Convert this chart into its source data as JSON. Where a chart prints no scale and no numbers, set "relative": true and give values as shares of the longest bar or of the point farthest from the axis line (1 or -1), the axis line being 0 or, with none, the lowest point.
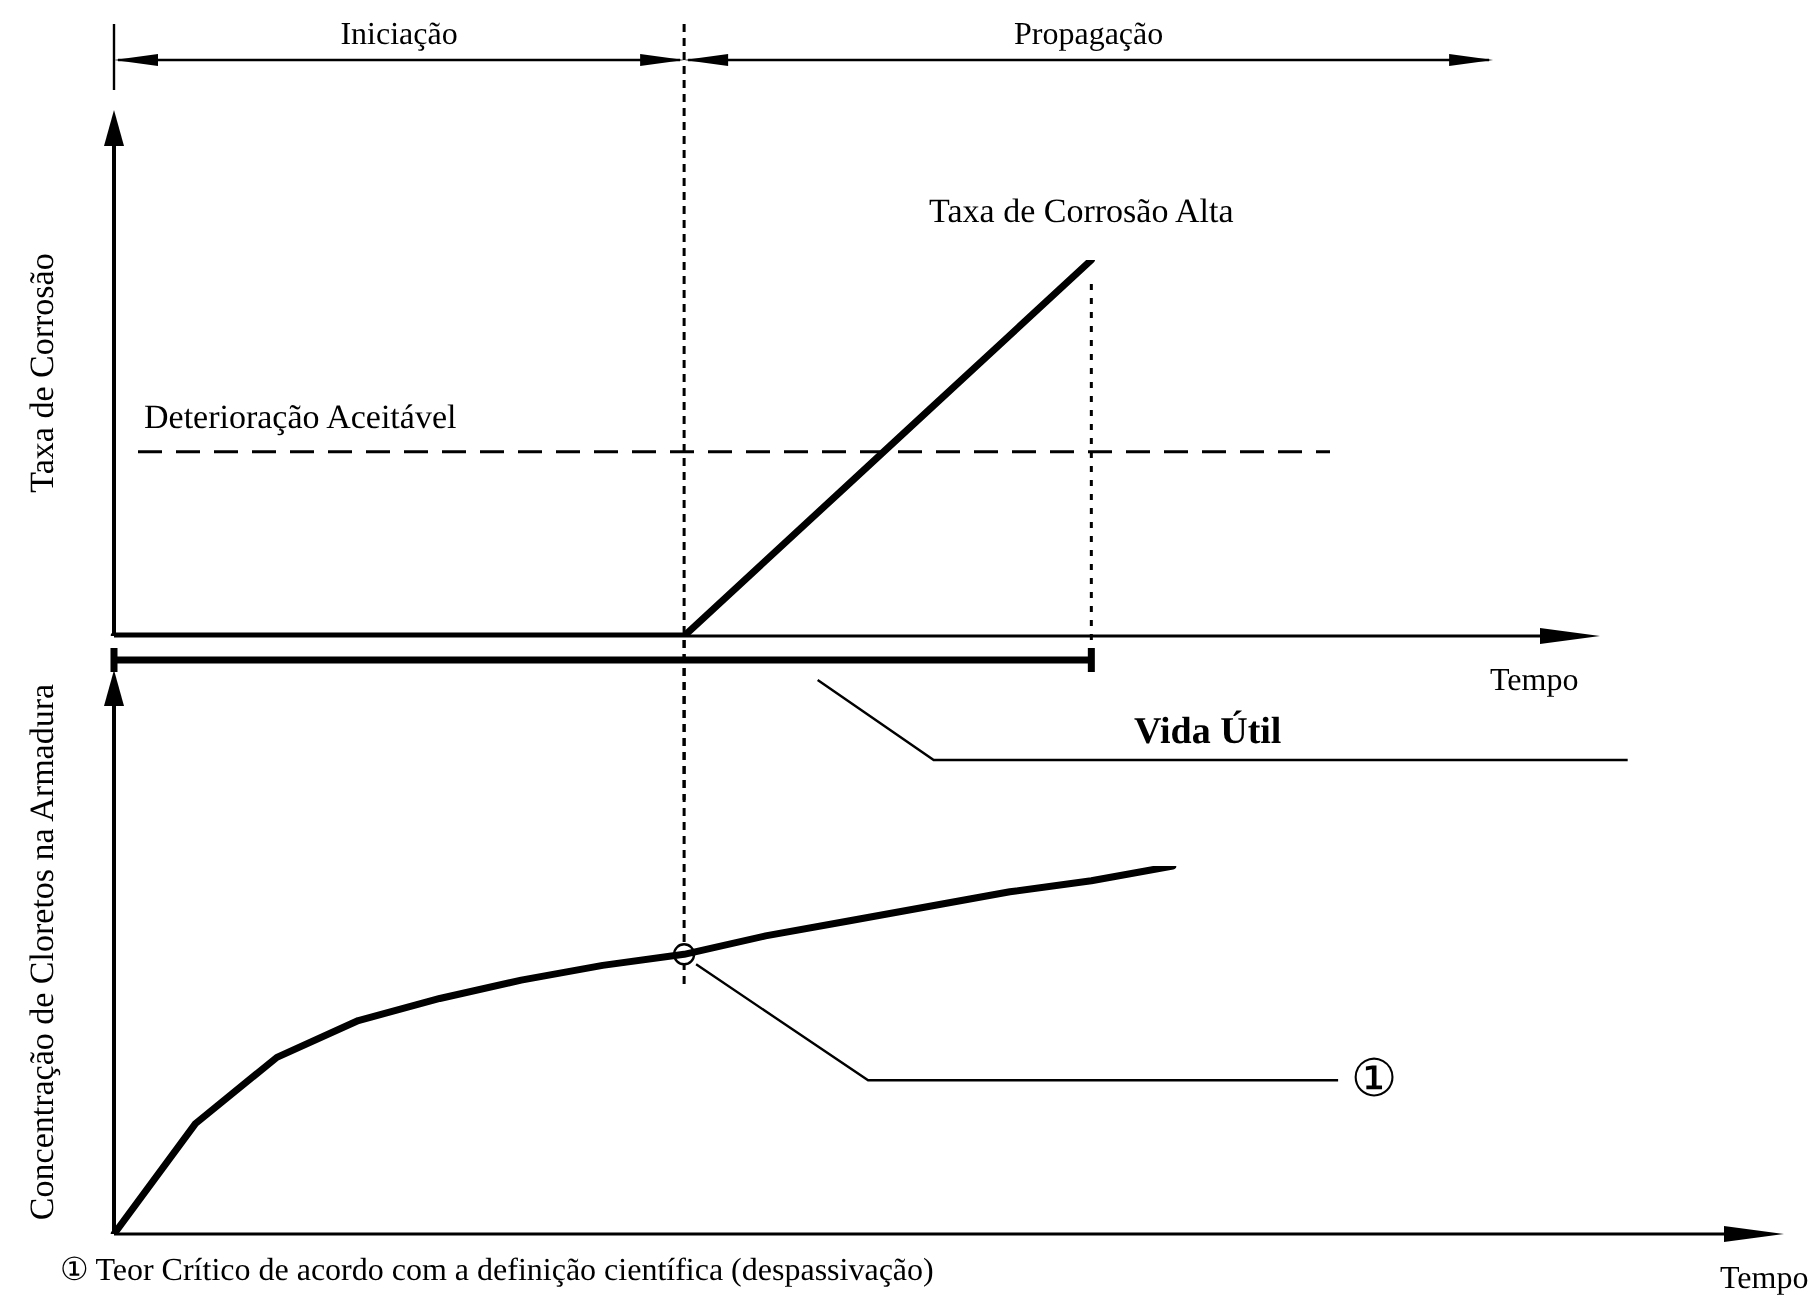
{
  "chart_data": [
    {
      "type": "line",
      "ylabel": "Taxa de Corrosão",
      "xlabel": "Tempo",
      "relative": true,
      "legend": false,
      "marker": "none",
      "line_style": "solid",
      "categories": [
        null,
        null,
        null,
        null,
        null,
        null,
        null,
        null,
        null,
        null,
        null,
        null,
        null,
        null,
        null,
        null,
        null,
        null,
        null
      ],
      "series": [
        {
          "color": "#000000",
          "values": [
            0,
            0,
            0,
            0,
            0,
            0,
            0,
            0,
            0.2,
            0.4,
            0.6,
            0.8,
            1,
            null,
            null,
            null,
            null,
            null,
            null
          ]
        }
      ],
      "ref_lines": [
        {
          "axis": "y",
          "value": 0.49,
          "label": "Deterioração Aceitável",
          "line_style": "dashed"
        }
      ],
      "annotations": [
        "Taxa de Corrosão Alta",
        "Iniciação",
        "Propagação",
        "Vida Útil"
      ]
    },
    {
      "type": "line",
      "ylabel": "Concentração de Cloretos na Armadura",
      "xlabel": "Tempo",
      "relative": true,
      "legend": false,
      "marker": "none",
      "line_style": "solid",
      "categories": [
        null,
        null,
        null,
        null,
        null,
        null,
        null,
        null,
        null,
        null,
        null,
        null,
        null,
        null,
        null,
        null,
        null,
        null,
        null
      ],
      "series": [
        {
          "color": "#000000",
          "values": [
            0,
            0.3,
            0.48,
            0.58,
            0.64,
            0.69,
            0.73,
            0.76,
            0.81,
            0.85,
            0.89,
            0.93,
            0.96,
            1,
            null,
            null,
            null,
            null,
            null
          ]
        },
        {
          "type": "scatter",
          "marker": "circle",
          "color": "#ffffff",
          "values": [
            null,
            null,
            null,
            null,
            null,
            null,
            null,
            0.76,
            null,
            null,
            null,
            null,
            null,
            null,
            null,
            null,
            null,
            null,
            null
          ]
        }
      ],
      "annotations": [
        "①",
        "① Teor Crítico de acordo com a definição científica (despassivação)"
      ]
    }
  ]
}
